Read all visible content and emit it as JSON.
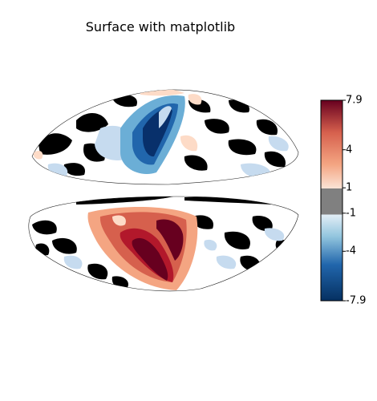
{
  "title": "Surface with matplotlib",
  "colorbar": {
    "colormap": "RdBu_r",
    "vmin": -7.9,
    "vmax": 7.9,
    "threshold_color": "#808080",
    "threshold_range": [
      -1,
      1
    ],
    "ticks": [
      {
        "label": "7.9",
        "value": 7.9
      },
      {
        "label": "4",
        "value": 4
      },
      {
        "label": "1",
        "value": 1
      },
      {
        "label": "-1",
        "value": -1
      },
      {
        "label": "-4",
        "value": -4
      },
      {
        "label": "-7.9",
        "value": -7.9
      }
    ]
  },
  "colors": {
    "deep_blue": "#08306b",
    "blue": "#2166ac",
    "light_blue": "#c6dbef",
    "gray": "#808080",
    "light_red": "#fddbc7",
    "red": "#d6604d",
    "dark_red": "#67001f",
    "sulcus_black": "#000000"
  }
}
